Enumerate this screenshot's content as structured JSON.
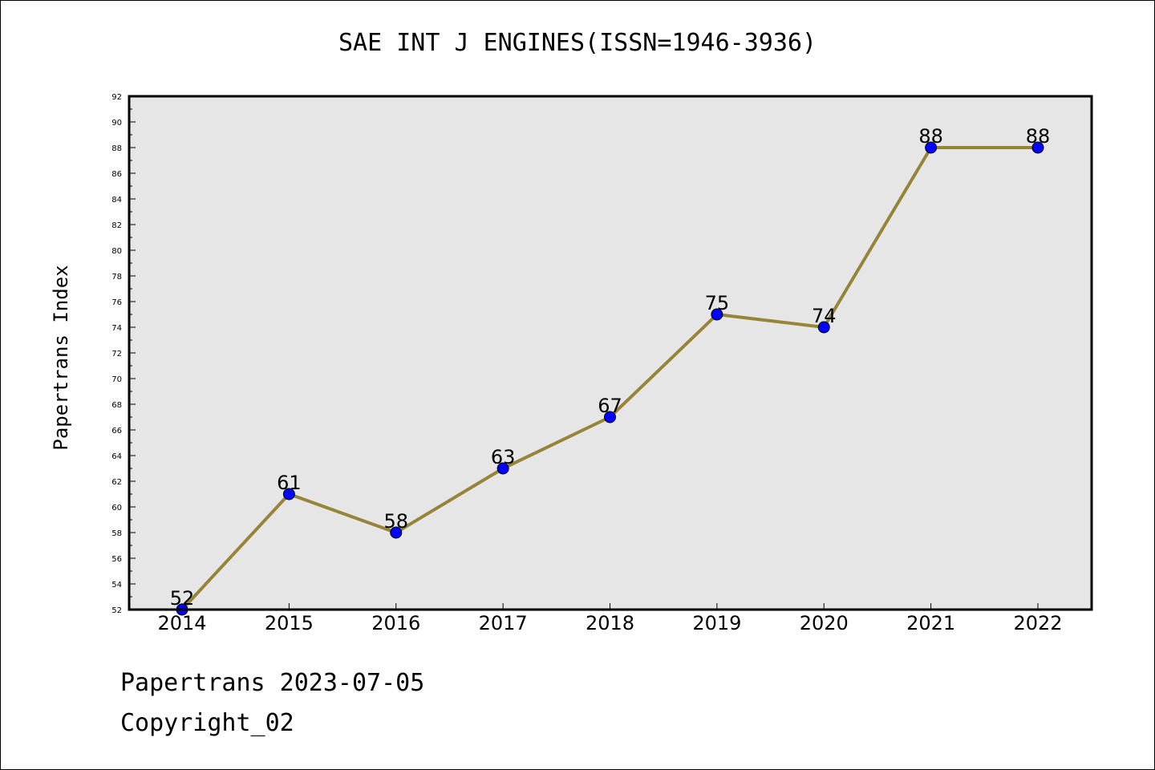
{
  "chart_data": {
    "type": "line",
    "title": "SAE INT J ENGINES(ISSN=1946-3936)",
    "xlabel": "",
    "ylabel": "Papertrans Index",
    "x": [
      "2014",
      "2015",
      "2016",
      "2017",
      "2018",
      "2019",
      "2020",
      "2021",
      "2022"
    ],
    "values": [
      52,
      61,
      58,
      63,
      67,
      75,
      74,
      88,
      88
    ],
    "ylim": [
      52,
      92
    ],
    "yticks": [
      "52",
      "54",
      "56",
      "58",
      "60",
      "62",
      "64",
      "66",
      "68",
      "70",
      "72",
      "74",
      "76",
      "78",
      "80",
      "82",
      "84",
      "86",
      "88",
      "90",
      "92"
    ],
    "grid": false,
    "line_color": "#968438",
    "marker_color": "#0000ff",
    "plot_bg": "#e6e6e6"
  },
  "footer": {
    "line1": "Papertrans 2023-07-05",
    "line2": "Copyright_02"
  }
}
